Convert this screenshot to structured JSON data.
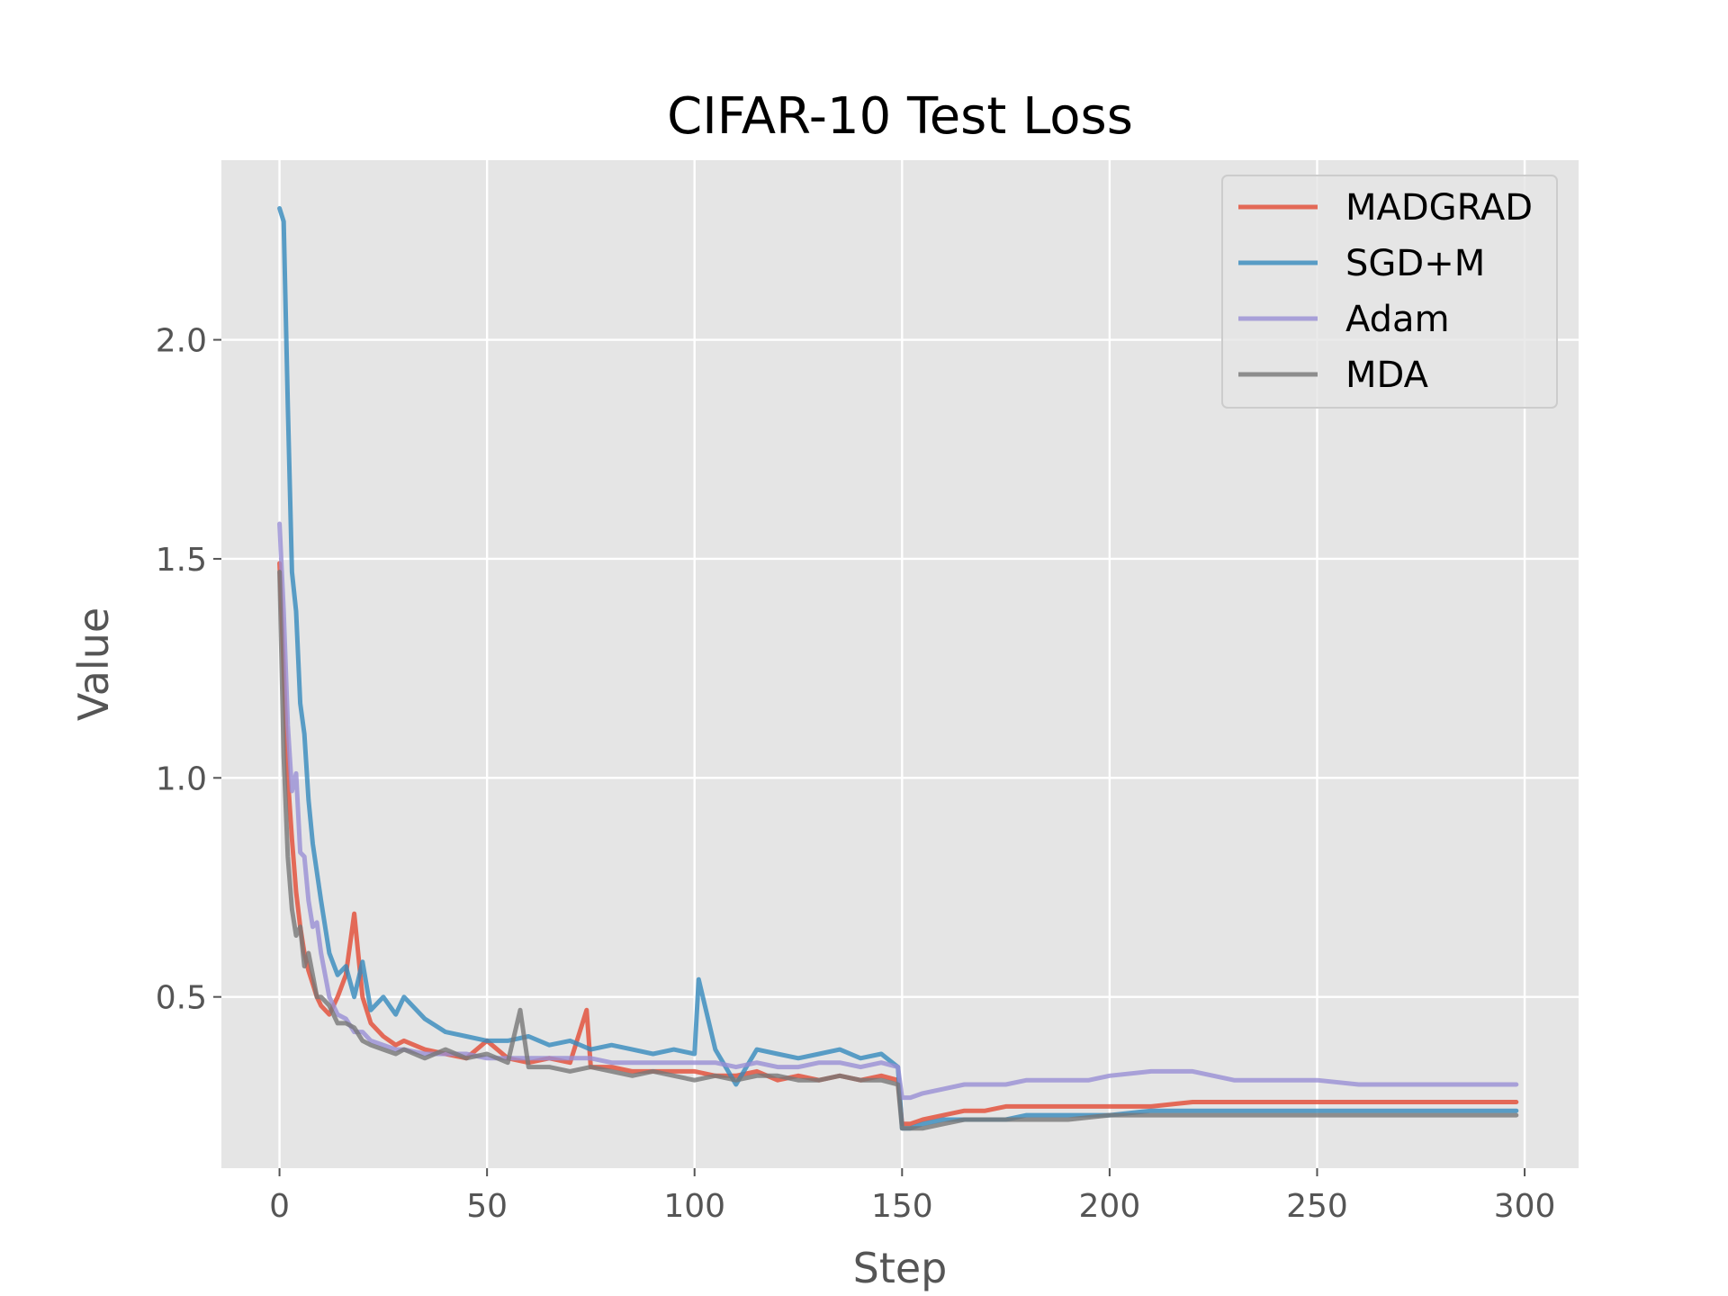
{
  "chart_data": {
    "type": "line",
    "title": "CIFAR-10 Test Loss",
    "xlabel": "Step",
    "ylabel": "Value",
    "xlim": [
      -14,
      313
    ],
    "ylim": [
      0.109,
      2.41
    ],
    "xticks": [
      0,
      50,
      100,
      150,
      200,
      250,
      300
    ],
    "yticks": [
      0.5,
      1.0,
      1.5,
      2.0
    ],
    "ytick_labels": [
      "0.5",
      "1.0",
      "1.5",
      "2.0"
    ],
    "grid": true,
    "legend_position": "top-right",
    "background": "#e5e5e5",
    "series": [
      {
        "name": "MADGRAD",
        "color": "#e24a33",
        "x": [
          0,
          1,
          2,
          3,
          4,
          5,
          6,
          7,
          8,
          9,
          10,
          12,
          14,
          16,
          18,
          20,
          22,
          25,
          28,
          30,
          35,
          40,
          45,
          50,
          55,
          60,
          65,
          70,
          74,
          75,
          80,
          85,
          90,
          95,
          100,
          105,
          110,
          115,
          120,
          125,
          130,
          135,
          140,
          145,
          149,
          150,
          152,
          155,
          160,
          165,
          170,
          175,
          180,
          185,
          190,
          195,
          200,
          210,
          220,
          230,
          240,
          250,
          260,
          270,
          280,
          290,
          298
        ],
        "y": [
          1.49,
          1.25,
          1.0,
          0.86,
          0.74,
          0.66,
          0.6,
          0.56,
          0.53,
          0.5,
          0.48,
          0.46,
          0.5,
          0.55,
          0.69,
          0.5,
          0.44,
          0.41,
          0.39,
          0.4,
          0.38,
          0.37,
          0.36,
          0.4,
          0.36,
          0.35,
          0.36,
          0.35,
          0.47,
          0.34,
          0.34,
          0.33,
          0.33,
          0.33,
          0.33,
          0.32,
          0.32,
          0.33,
          0.31,
          0.32,
          0.31,
          0.32,
          0.31,
          0.32,
          0.31,
          0.21,
          0.21,
          0.22,
          0.23,
          0.24,
          0.24,
          0.25,
          0.25,
          0.25,
          0.25,
          0.25,
          0.25,
          0.25,
          0.26,
          0.26,
          0.26,
          0.26,
          0.26,
          0.26,
          0.26,
          0.26,
          0.26
        ]
      },
      {
        "name": "SGD+M",
        "color": "#348abd",
        "x": [
          0,
          1,
          2,
          3,
          4,
          5,
          6,
          7,
          8,
          10,
          12,
          14,
          16,
          18,
          20,
          22,
          25,
          28,
          30,
          35,
          40,
          45,
          50,
          55,
          60,
          65,
          70,
          75,
          80,
          85,
          90,
          95,
          100,
          101,
          105,
          110,
          115,
          120,
          125,
          130,
          135,
          140,
          145,
          149,
          150,
          152,
          155,
          160,
          165,
          170,
          175,
          180,
          190,
          200,
          210,
          220,
          230,
          240,
          250,
          260,
          270,
          280,
          290,
          298
        ],
        "y": [
          2.3,
          2.27,
          1.85,
          1.47,
          1.38,
          1.17,
          1.1,
          0.95,
          0.85,
          0.72,
          0.6,
          0.55,
          0.57,
          0.5,
          0.58,
          0.47,
          0.5,
          0.46,
          0.5,
          0.45,
          0.42,
          0.41,
          0.4,
          0.4,
          0.41,
          0.39,
          0.4,
          0.38,
          0.39,
          0.38,
          0.37,
          0.38,
          0.37,
          0.54,
          0.38,
          0.3,
          0.38,
          0.37,
          0.36,
          0.37,
          0.38,
          0.36,
          0.37,
          0.34,
          0.2,
          0.2,
          0.21,
          0.22,
          0.22,
          0.22,
          0.22,
          0.23,
          0.23,
          0.23,
          0.24,
          0.24,
          0.24,
          0.24,
          0.24,
          0.24,
          0.24,
          0.24,
          0.24,
          0.24
        ]
      },
      {
        "name": "Adam",
        "color": "#988ed5",
        "x": [
          0,
          1,
          2,
          3,
          4,
          5,
          6,
          7,
          8,
          9,
          10,
          12,
          14,
          16,
          18,
          20,
          22,
          25,
          28,
          30,
          35,
          40,
          45,
          50,
          55,
          60,
          65,
          70,
          75,
          80,
          85,
          90,
          95,
          100,
          105,
          110,
          115,
          120,
          125,
          130,
          135,
          140,
          145,
          149,
          150,
          152,
          155,
          160,
          165,
          170,
          175,
          180,
          185,
          190,
          195,
          200,
          210,
          215,
          220,
          225,
          230,
          240,
          250,
          260,
          270,
          280,
          290,
          298
        ],
        "y": [
          1.58,
          1.38,
          1.12,
          0.97,
          1.01,
          0.83,
          0.82,
          0.72,
          0.66,
          0.67,
          0.6,
          0.5,
          0.46,
          0.45,
          0.42,
          0.42,
          0.4,
          0.39,
          0.38,
          0.38,
          0.37,
          0.37,
          0.37,
          0.36,
          0.36,
          0.36,
          0.36,
          0.36,
          0.36,
          0.35,
          0.35,
          0.35,
          0.35,
          0.35,
          0.35,
          0.34,
          0.35,
          0.34,
          0.34,
          0.35,
          0.35,
          0.34,
          0.35,
          0.34,
          0.27,
          0.27,
          0.28,
          0.29,
          0.3,
          0.3,
          0.3,
          0.31,
          0.31,
          0.31,
          0.31,
          0.32,
          0.33,
          0.33,
          0.33,
          0.32,
          0.31,
          0.31,
          0.31,
          0.3,
          0.3,
          0.3,
          0.3,
          0.3
        ]
      },
      {
        "name": "MDA",
        "color": "#777777",
        "x": [
          0,
          1,
          2,
          3,
          4,
          5,
          6,
          7,
          8,
          9,
          10,
          12,
          14,
          16,
          18,
          20,
          22,
          25,
          28,
          30,
          35,
          40,
          45,
          50,
          55,
          58,
          60,
          65,
          70,
          75,
          80,
          85,
          90,
          95,
          100,
          105,
          110,
          115,
          120,
          125,
          130,
          135,
          140,
          145,
          149,
          150,
          152,
          155,
          160,
          165,
          170,
          175,
          180,
          190,
          200,
          210,
          220,
          230,
          240,
          250,
          260,
          270,
          280,
          290,
          298
        ],
        "y": [
          1.47,
          1.05,
          0.82,
          0.7,
          0.64,
          0.66,
          0.57,
          0.6,
          0.55,
          0.5,
          0.5,
          0.48,
          0.44,
          0.44,
          0.43,
          0.4,
          0.39,
          0.38,
          0.37,
          0.38,
          0.36,
          0.38,
          0.36,
          0.37,
          0.35,
          0.47,
          0.34,
          0.34,
          0.33,
          0.34,
          0.33,
          0.32,
          0.33,
          0.32,
          0.31,
          0.32,
          0.31,
          0.32,
          0.32,
          0.31,
          0.31,
          0.32,
          0.31,
          0.31,
          0.3,
          0.2,
          0.2,
          0.2,
          0.21,
          0.22,
          0.22,
          0.22,
          0.22,
          0.22,
          0.23,
          0.23,
          0.23,
          0.23,
          0.23,
          0.23,
          0.23,
          0.23,
          0.23,
          0.23,
          0.23
        ]
      }
    ]
  }
}
